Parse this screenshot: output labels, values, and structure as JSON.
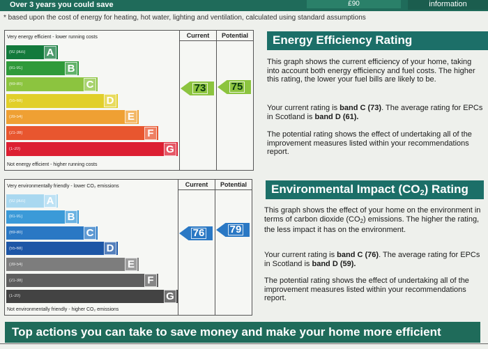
{
  "top_strip": {
    "label": "Over 3 years you could save",
    "amount": "£90",
    "info": "information"
  },
  "note": "* based upon the cost of energy for heating, hot water, lighting and ventilation, calculated using standard assumptions",
  "energy_chart": {
    "top_caption": "Very energy efficient - lower running costs",
    "bottom_caption": "Not energy efficient - higher running costs",
    "current_header": "Current",
    "potential_header": "Potential",
    "current_value": "73",
    "potential_value": "75",
    "bands": [
      {
        "range": "(92 plus)",
        "letter": "A",
        "color": "#137a3c"
      },
      {
        "range": "(81-91)",
        "letter": "B",
        "color": "#2f9a3a"
      },
      {
        "range": "(69-80)",
        "letter": "C",
        "color": "#8cc43f"
      },
      {
        "range": "(55-68)",
        "letter": "D",
        "color": "#e1cf2a"
      },
      {
        "range": "(39-54)",
        "letter": "E",
        "color": "#efa033"
      },
      {
        "range": "(21-38)",
        "letter": "F",
        "color": "#e8562f"
      },
      {
        "range": "(1-20)",
        "letter": "G",
        "color": "#dc1f32"
      }
    ],
    "current_arrow_color": "#8cc43f",
    "potential_arrow_color": "#8cc43f"
  },
  "env_chart": {
    "top_caption": "Very environmentally friendly - lower CO₂ emissions",
    "bottom_caption": "Not environmentally friendly - higher CO₂ emissions",
    "current_header": "Current",
    "potential_header": "Potential",
    "current_value": "76",
    "potential_value": "79",
    "bands": [
      {
        "range": "(92 plus)",
        "letter": "A",
        "color": "#a9d8f0"
      },
      {
        "range": "(81-91)",
        "letter": "B",
        "color": "#3b9ad8"
      },
      {
        "range": "(69-80)",
        "letter": "C",
        "color": "#2a78c4"
      },
      {
        "range": "(55-68)",
        "letter": "D",
        "color": "#1d56a6"
      },
      {
        "range": "(39-54)",
        "letter": "E",
        "color": "#7d7d7d"
      },
      {
        "range": "(21-38)",
        "letter": "F",
        "color": "#5e5e5e"
      },
      {
        "range": "(1-20)",
        "letter": "G",
        "color": "#434343"
      }
    ],
    "current_arrow_color": "#2a78c4",
    "potential_arrow_color": "#2a78c4"
  },
  "energy_panel": {
    "title": "Energy Efficiency Rating",
    "p1": "This graph shows the current efficiency of your home, taking into account both energy efficiency and fuel costs. The higher this rating, the lower your fuel bills are likely to be.",
    "p2_a": "Your current rating is ",
    "p2_band": "band C (73)",
    "p2_b": ". The average rating for EPCs in Scotland is ",
    "p2_avg": "band D (61).",
    "p3": "The potential rating shows the effect of undertaking all of the improvement measures listed within your recommendations report."
  },
  "env_panel": {
    "title_a": "Environmental Impact (CO",
    "title_sub": "2",
    "title_b": ") Rating",
    "p1_a": "This graph shows the effect of your home on the environment in terms of carbon dioxide (CO",
    "p1_sub": "2",
    "p1_b": ") emissions. The higher the rating, the less impact it has on the environment.",
    "p2_a": "Your current rating is ",
    "p2_band": "band C (76)",
    "p2_b": ". The average rating for EPCs in Scotland is ",
    "p2_avg": "band D (59).",
    "p3": "The potential rating shows the effect of undertaking all of the improvement measures listed within your recommendations report."
  },
  "bottom_bar": {
    "title": "Top actions you can take to save money and make your home more efficient"
  },
  "colors": {
    "header_green": "#1f6b5a",
    "title_teal": "#1c6f68"
  }
}
